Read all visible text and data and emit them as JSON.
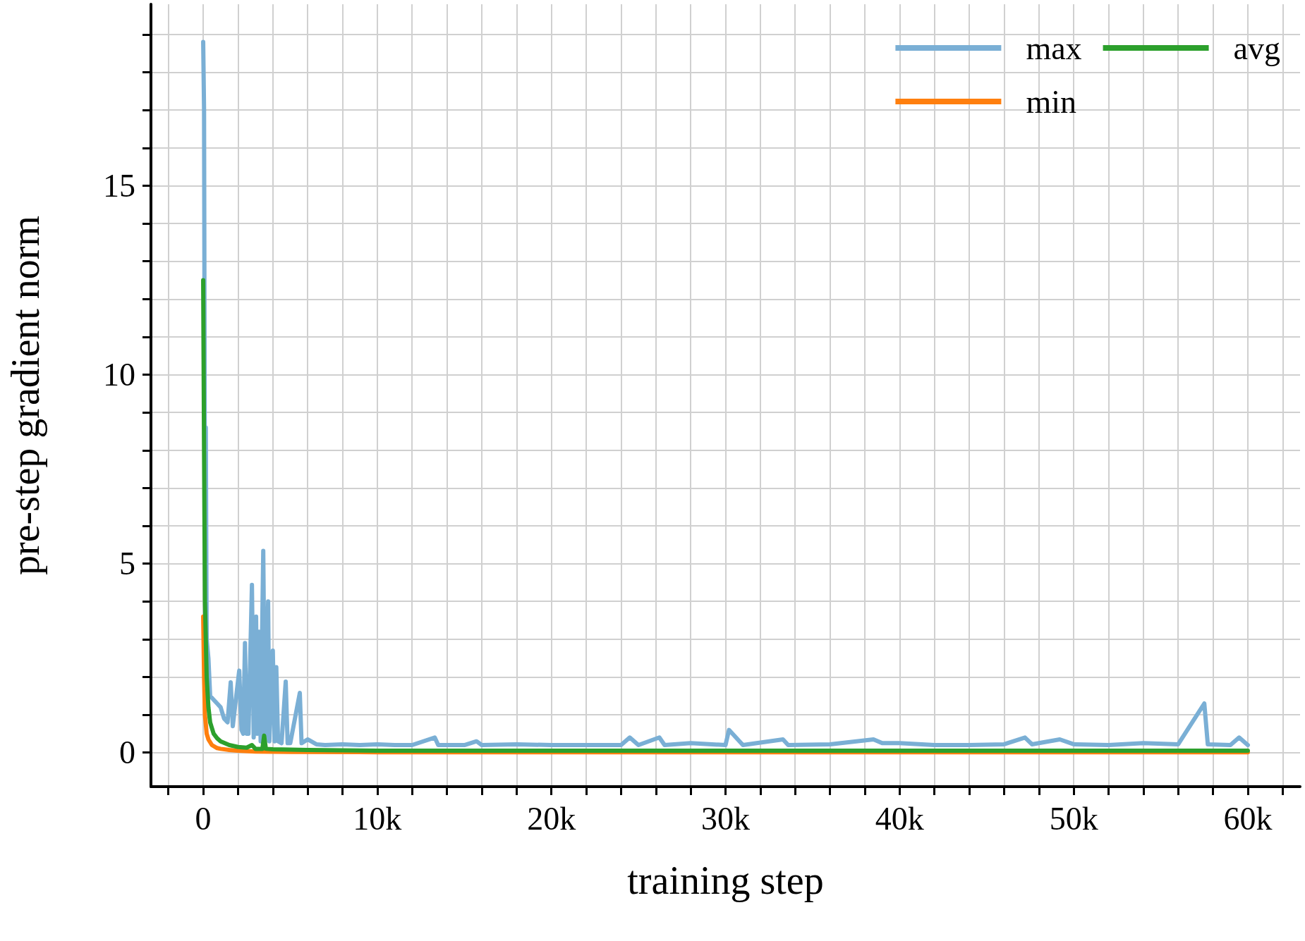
{
  "chart_data": {
    "type": "line",
    "xlabel": "training step",
    "ylabel": "pre-step gradient norm",
    "xlim": [
      -3000,
      63000
    ],
    "xticks": [
      {
        "value": -2000,
        "label": null
      },
      {
        "value": 0,
        "label": "0"
      },
      {
        "value": 2000,
        "label": null
      },
      {
        "value": 4000,
        "label": null
      },
      {
        "value": 6000,
        "label": null
      },
      {
        "value": 8000,
        "label": null
      },
      {
        "value": 10000,
        "label": "10k"
      },
      {
        "value": 12000,
        "label": null
      },
      {
        "value": 14000,
        "label": null
      },
      {
        "value": 16000,
        "label": null
      },
      {
        "value": 18000,
        "label": null
      },
      {
        "value": 20000,
        "label": "20k"
      },
      {
        "value": 22000,
        "label": null
      },
      {
        "value": 24000,
        "label": null
      },
      {
        "value": 26000,
        "label": null
      },
      {
        "value": 28000,
        "label": null
      },
      {
        "value": 30000,
        "label": "30k"
      },
      {
        "value": 32000,
        "label": null
      },
      {
        "value": 34000,
        "label": null
      },
      {
        "value": 36000,
        "label": null
      },
      {
        "value": 38000,
        "label": null
      },
      {
        "value": 40000,
        "label": "40k"
      },
      {
        "value": 42000,
        "label": null
      },
      {
        "value": 44000,
        "label": null
      },
      {
        "value": 46000,
        "label": null
      },
      {
        "value": 48000,
        "label": null
      },
      {
        "value": 50000,
        "label": "50k"
      },
      {
        "value": 52000,
        "label": null
      },
      {
        "value": 54000,
        "label": null
      },
      {
        "value": 56000,
        "label": null
      },
      {
        "value": 58000,
        "label": null
      },
      {
        "value": 60000,
        "label": "60k"
      },
      {
        "value": 62000,
        "label": null
      }
    ],
    "ylim": [
      -0.9,
      19.8
    ],
    "yticks": [
      0,
      {
        "value": 1,
        "label": null
      },
      {
        "value": 2,
        "label": null
      },
      {
        "value": 3,
        "label": null
      },
      {
        "value": 4,
        "label": null
      },
      5,
      {
        "value": 6,
        "label": null
      },
      {
        "value": 7,
        "label": null
      },
      {
        "value": 8,
        "label": null
      },
      {
        "value": 9,
        "label": null
      },
      10,
      {
        "value": 11,
        "label": null
      },
      {
        "value": 12,
        "label": null
      },
      {
        "value": 13,
        "label": null
      },
      {
        "value": 14,
        "label": null
      },
      15,
      {
        "value": 16,
        "label": null
      },
      {
        "value": 17,
        "label": null
      },
      {
        "value": 18,
        "label": null
      },
      {
        "value": 19,
        "label": null
      }
    ],
    "grid": true,
    "legend": "top right",
    "marker": "none",
    "line_style": "solid",
    "series": [
      {
        "name": "max",
        "color": "#7aafd5",
        "x": [
          0,
          50,
          100,
          150,
          200,
          300,
          400,
          600,
          800,
          1000,
          1200,
          1400,
          1580,
          1700,
          1900,
          2070,
          2200,
          2300,
          2400,
          2500,
          2600,
          2800,
          2900,
          3040,
          3100,
          3200,
          3300,
          3450,
          3550,
          3730,
          3800,
          4000,
          4100,
          4200,
          4300,
          4500,
          4740,
          4850,
          5000,
          5550,
          5650,
          6000,
          6500,
          7000,
          8000,
          9000,
          10000,
          11000,
          12000,
          13300,
          13500,
          15000,
          15700,
          16000,
          18000,
          20000,
          22000,
          24000,
          24500,
          25000,
          26200,
          26500,
          28000,
          30000,
          30200,
          31000,
          33300,
          33600,
          36000,
          38500,
          39000,
          40000,
          42000,
          44000,
          46000,
          47200,
          47600,
          49200,
          50000,
          52000,
          54000,
          56000,
          57500,
          57700,
          59000,
          59500,
          60000
        ],
        "values": [
          18.8,
          17,
          6,
          8.6,
          3,
          2.5,
          1.5,
          1.4,
          1.3,
          1.2,
          0.9,
          0.8,
          1.86,
          0.7,
          1.5,
          2.17,
          0.6,
          0.5,
          2.9,
          0.5,
          0.5,
          4.44,
          0.4,
          3.6,
          0.5,
          3.2,
          0.3,
          5.34,
          0.3,
          4.0,
          0.3,
          2.7,
          0.3,
          2.26,
          0.3,
          0.25,
          1.88,
          0.25,
          0.25,
          1.58,
          0.25,
          0.35,
          0.22,
          0.2,
          0.22,
          0.2,
          0.22,
          0.2,
          0.2,
          0.4,
          0.2,
          0.2,
          0.3,
          0.2,
          0.22,
          0.2,
          0.2,
          0.2,
          0.4,
          0.2,
          0.4,
          0.2,
          0.25,
          0.2,
          0.6,
          0.2,
          0.35,
          0.2,
          0.22,
          0.35,
          0.25,
          0.25,
          0.2,
          0.2,
          0.22,
          0.4,
          0.22,
          0.35,
          0.22,
          0.2,
          0.25,
          0.22,
          1.3,
          0.22,
          0.2,
          0.4,
          0.2
        ]
      },
      {
        "name": "min",
        "color": "#ff7f0e",
        "x": [
          0,
          50,
          100,
          200,
          300,
          500,
          800,
          1000,
          1500,
          2000,
          3000,
          5000,
          10000,
          20000,
          30000,
          40000,
          50000,
          60000
        ],
        "values": [
          3.6,
          2,
          1,
          0.5,
          0.35,
          0.2,
          0.12,
          0.1,
          0.07,
          0.05,
          0.03,
          0.02,
          0.01,
          0.01,
          0.01,
          0.01,
          0.01,
          0.01
        ]
      },
      {
        "name": "avg",
        "color": "#2ca02c",
        "x": [
          0,
          50,
          100,
          200,
          300,
          400,
          600,
          800,
          1000,
          1500,
          2000,
          2500,
          2800,
          3000,
          3400,
          3500,
          3600,
          4000,
          5000,
          6000,
          10000,
          20000,
          30000,
          40000,
          50000,
          60000
        ],
        "values": [
          12.5,
          8,
          4,
          2,
          1.2,
          0.8,
          0.5,
          0.38,
          0.3,
          0.2,
          0.15,
          0.13,
          0.2,
          0.1,
          0.1,
          0.45,
          0.1,
          0.09,
          0.08,
          0.07,
          0.05,
          0.05,
          0.05,
          0.05,
          0.05,
          0.05
        ]
      }
    ]
  }
}
